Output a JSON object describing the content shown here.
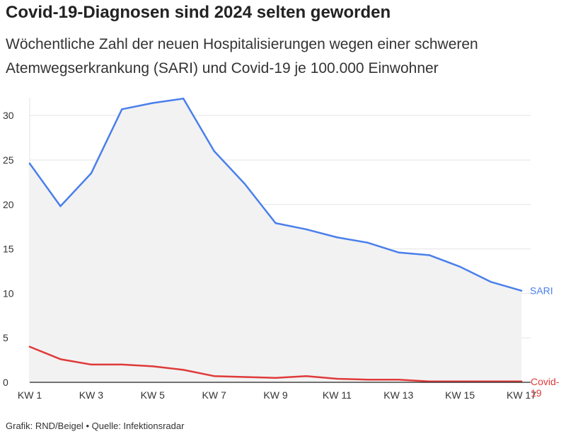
{
  "title": "Covid-19-Diagnosen sind 2024 selten geworden",
  "subtitle": "Wöchentliche Zahl der neuen Hospitalisierungen wegen einer schweren Atemwegserkrankung (SARI) und Covid-19 je 100.000 Einwohner",
  "footer": {
    "credit": "Grafik: RND/Beigel",
    "separator": "•",
    "source": "Quelle: Infektionsradar"
  },
  "chart_data": {
    "type": "line",
    "x": [
      "KW 1",
      "KW 2",
      "KW 3",
      "KW 4",
      "KW 5",
      "KW 6",
      "KW 7",
      "KW 8",
      "KW 9",
      "KW 10",
      "KW 11",
      "KW 12",
      "KW 13",
      "KW 14",
      "KW 15",
      "KW 16",
      "KW 17"
    ],
    "xticks": [
      "KW 1",
      "KW 3",
      "KW 5",
      "KW 7",
      "KW 9",
      "KW 11",
      "KW 13",
      "KW 15",
      "KW 17"
    ],
    "yticks": [
      0,
      5,
      10,
      15,
      20,
      25,
      30
    ],
    "ylim": [
      0,
      32
    ],
    "grid": true,
    "series": [
      {
        "name": "SARI",
        "color": "#4a7fec",
        "fill": "#f2f2f2",
        "values": [
          24.6,
          19.8,
          23.5,
          30.7,
          31.4,
          31.9,
          26.0,
          22.3,
          17.9,
          17.2,
          16.3,
          15.7,
          14.6,
          14.3,
          13.0,
          11.3,
          10.3
        ]
      },
      {
        "name": "Covid-19",
        "color": "#e03a3a",
        "values": [
          4.0,
          2.6,
          2.0,
          2.0,
          1.8,
          1.4,
          0.7,
          0.6,
          0.5,
          0.7,
          0.4,
          0.3,
          0.3,
          0.1,
          0.1,
          0.1,
          0.1
        ]
      }
    ]
  }
}
